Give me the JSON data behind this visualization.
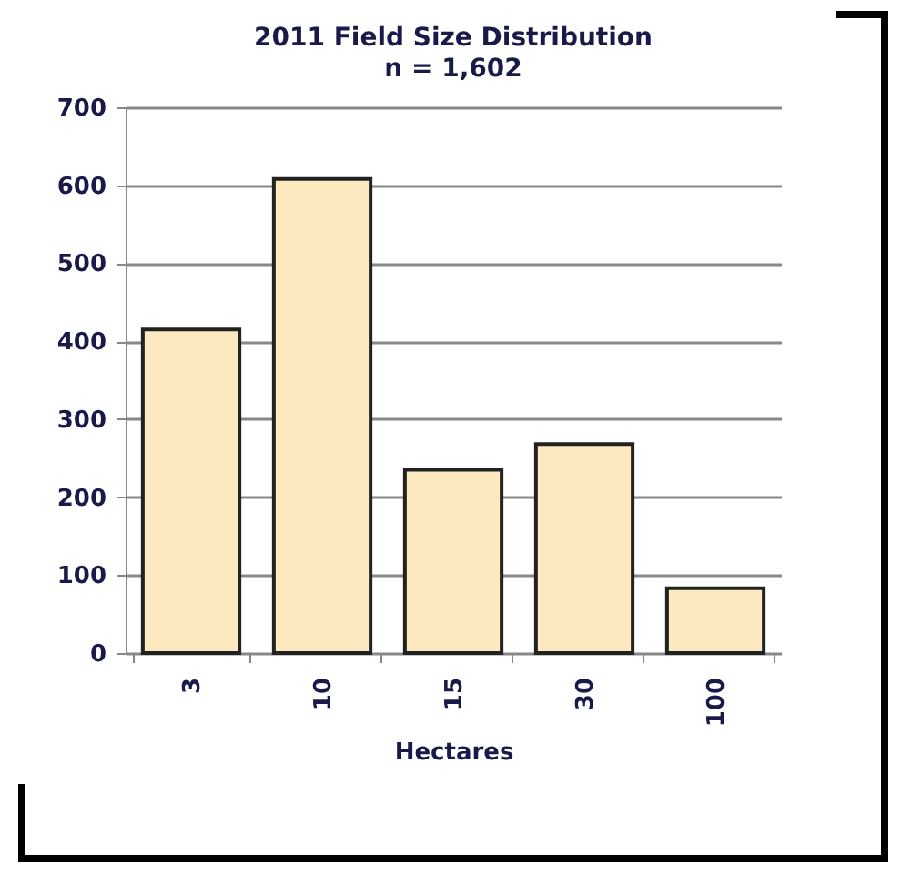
{
  "chart_data": {
    "type": "bar",
    "title": "2011 Field Size Distribution",
    "subtitle": "n = 1,602",
    "xlabel": "Hectares",
    "categories": [
      "3",
      "10",
      "15",
      "30",
      "100"
    ],
    "values": [
      415,
      608,
      235,
      268,
      83
    ],
    "color": "#fde9c0",
    "ylim": [
      0,
      700
    ],
    "yticks": [
      0,
      100,
      200,
      300,
      400,
      500,
      600,
      700
    ],
    "grid": "y"
  }
}
